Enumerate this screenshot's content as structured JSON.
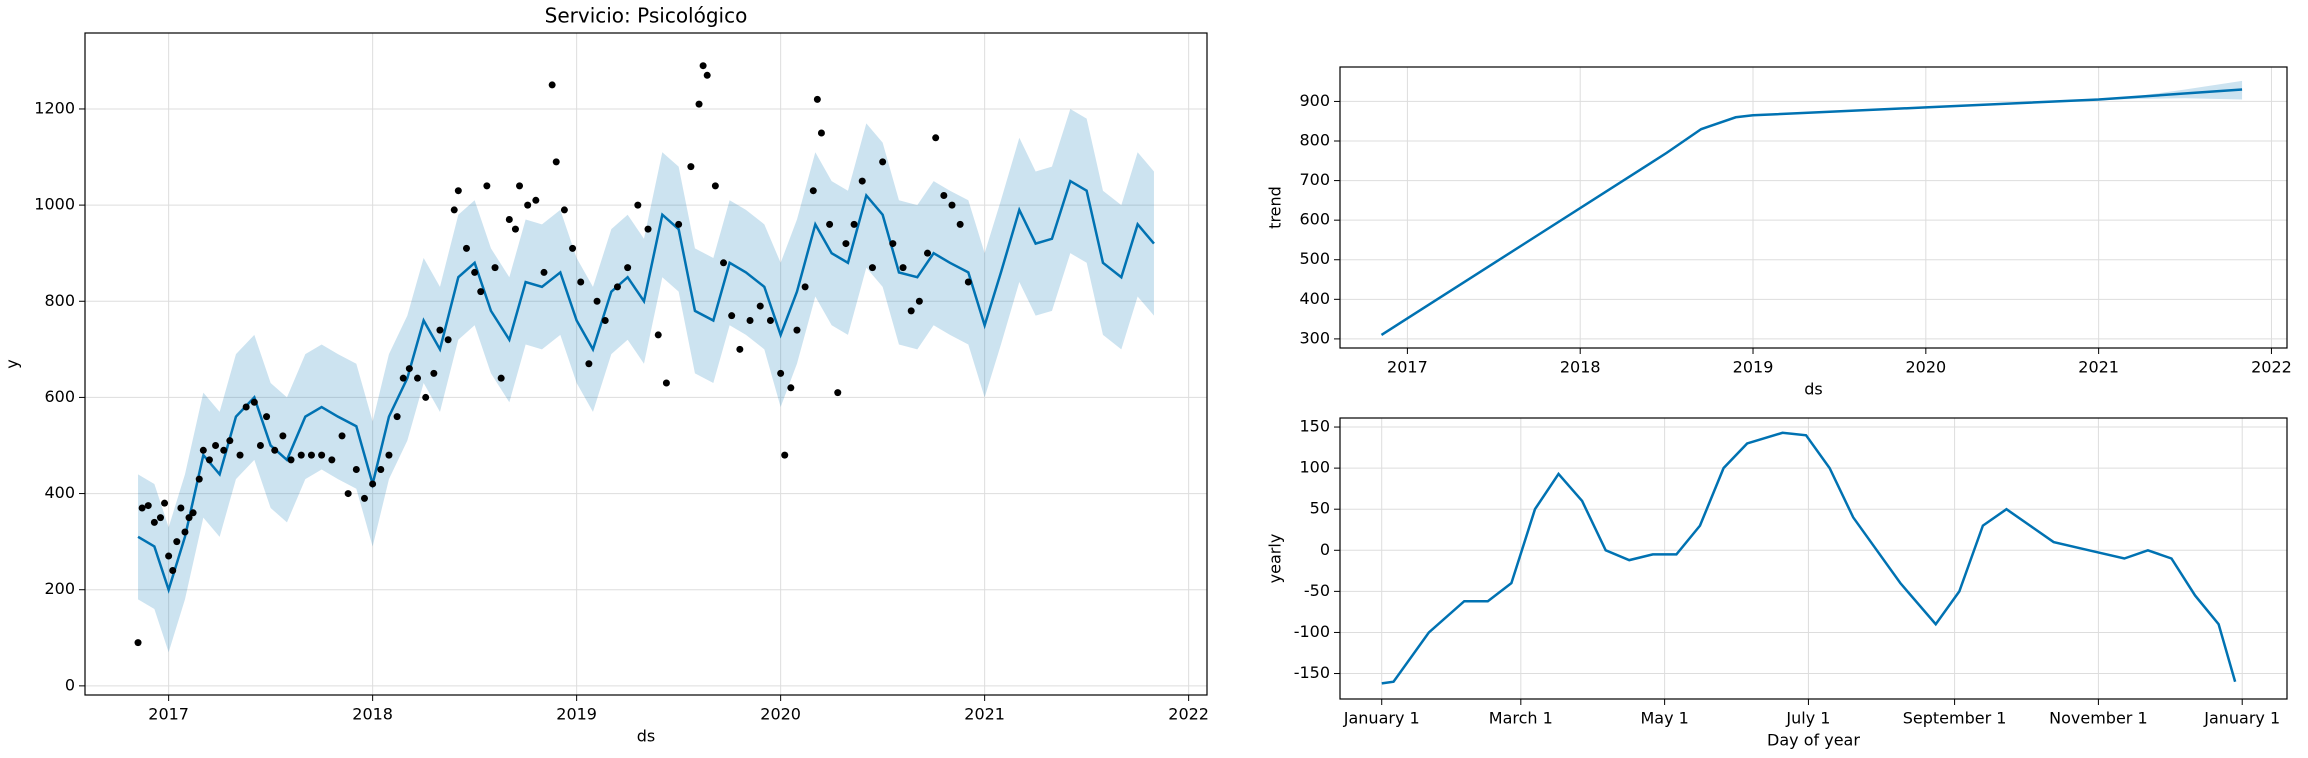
{
  "chart_data": [
    {
      "type": "line",
      "title": "Servicio: Psicológico",
      "xlabel": "ds",
      "ylabel": "y",
      "xlim": [
        2016.59,
        2022.09
      ],
      "ylim": [
        -19,
        1358
      ],
      "xticks": [
        2017,
        2018,
        2019,
        2020,
        2021,
        2022
      ],
      "yticks": [
        0,
        200,
        400,
        600,
        800,
        1000,
        1200
      ],
      "grid": true,
      "line_color": "#0072b2",
      "band_color": "#0072b2",
      "point_color": "#000000",
      "forecast": {
        "x": [
          2016.85,
          2016.93,
          2017.0,
          2017.08,
          2017.17,
          2017.25,
          2017.33,
          2017.42,
          2017.5,
          2017.58,
          2017.67,
          2017.75,
          2017.83,
          2017.92,
          2018.0,
          2018.08,
          2018.17,
          2018.25,
          2018.33,
          2018.42,
          2018.5,
          2018.58,
          2018.67,
          2018.75,
          2018.83,
          2018.92,
          2019.0,
          2019.08,
          2019.17,
          2019.25,
          2019.33,
          2019.42,
          2019.5,
          2019.58,
          2019.67,
          2019.75,
          2019.83,
          2019.92,
          2020.0,
          2020.08,
          2020.17,
          2020.25,
          2020.33,
          2020.42,
          2020.5,
          2020.58,
          2020.67,
          2020.75,
          2020.83,
          2020.92,
          2021.0,
          2021.08,
          2021.17,
          2021.25,
          2021.33,
          2021.42,
          2021.5,
          2021.58,
          2021.67,
          2021.75,
          2021.83
        ],
        "values": [
          310,
          290,
          200,
          310,
          480,
          440,
          560,
          600,
          500,
          470,
          560,
          580,
          560,
          540,
          420,
          560,
          640,
          760,
          700,
          850,
          880,
          780,
          720,
          840,
          830,
          860,
          760,
          700,
          820,
          850,
          800,
          980,
          950,
          780,
          760,
          880,
          860,
          830,
          730,
          820,
          960,
          900,
          880,
          1020,
          980,
          860,
          850,
          900,
          880,
          860,
          750,
          860,
          990,
          920,
          930,
          1050,
          1030,
          880,
          850,
          960,
          920
        ],
        "lower": [
          180,
          160,
          70,
          180,
          350,
          310,
          430,
          470,
          370,
          340,
          430,
          450,
          430,
          410,
          290,
          430,
          510,
          630,
          570,
          720,
          750,
          650,
          590,
          710,
          700,
          730,
          630,
          570,
          690,
          720,
          670,
          850,
          820,
          650,
          630,
          750,
          730,
          700,
          580,
          670,
          810,
          750,
          730,
          870,
          830,
          710,
          700,
          750,
          730,
          710,
          600,
          710,
          840,
          770,
          780,
          900,
          880,
          730,
          700,
          810,
          770
        ],
        "upper": [
          440,
          420,
          330,
          440,
          610,
          570,
          690,
          730,
          630,
          600,
          690,
          710,
          690,
          670,
          550,
          690,
          770,
          890,
          830,
          980,
          1010,
          910,
          850,
          970,
          960,
          990,
          890,
          830,
          950,
          980,
          930,
          1110,
          1080,
          910,
          890,
          1010,
          990,
          960,
          880,
          970,
          1110,
          1050,
          1030,
          1170,
          1130,
          1010,
          1000,
          1050,
          1030,
          1010,
          900,
          1010,
          1140,
          1070,
          1080,
          1200,
          1180,
          1030,
          1000,
          1110,
          1070
        ]
      },
      "observed": {
        "x": [
          2016.85,
          2016.87,
          2016.9,
          2016.93,
          2016.96,
          2016.98,
          2017.0,
          2017.02,
          2017.04,
          2017.06,
          2017.08,
          2017.1,
          2017.12,
          2017.15,
          2017.17,
          2017.2,
          2017.23,
          2017.27,
          2017.3,
          2017.35,
          2017.38,
          2017.42,
          2017.45,
          2017.48,
          2017.52,
          2017.56,
          2017.6,
          2017.65,
          2017.7,
          2017.75,
          2017.8,
          2017.85,
          2017.88,
          2017.92,
          2017.96,
          2018.0,
          2018.04,
          2018.08,
          2018.12,
          2018.15,
          2018.18,
          2018.22,
          2018.26,
          2018.3,
          2018.33,
          2018.37,
          2018.4,
          2018.42,
          2018.46,
          2018.5,
          2018.53,
          2018.56,
          2018.6,
          2018.63,
          2018.67,
          2018.7,
          2018.72,
          2018.76,
          2018.8,
          2018.84,
          2018.88,
          2018.9,
          2018.94,
          2018.98,
          2019.02,
          2019.06,
          2019.1,
          2019.14,
          2019.2,
          2019.25,
          2019.3,
          2019.35,
          2019.4,
          2019.44,
          2019.5,
          2019.56,
          2019.6,
          2019.62,
          2019.64,
          2019.68,
          2019.72,
          2019.76,
          2019.8,
          2019.85,
          2019.9,
          2019.95,
          2020.0,
          2020.02,
          2020.05,
          2020.08,
          2020.12,
          2020.16,
          2020.18,
          2020.2,
          2020.24,
          2020.28,
          2020.32,
          2020.36,
          2020.4,
          2020.45,
          2020.5,
          2020.55,
          2020.6,
          2020.64,
          2020.68,
          2020.72,
          2020.76,
          2020.8,
          2020.84,
          2020.88,
          2020.92
        ],
        "values": [
          90,
          370,
          375,
          340,
          350,
          380,
          270,
          240,
          300,
          370,
          320,
          350,
          360,
          430,
          490,
          470,
          500,
          490,
          510,
          480,
          580,
          590,
          500,
          560,
          490,
          520,
          470,
          480,
          480,
          480,
          470,
          520,
          400,
          450,
          390,
          420,
          450,
          480,
          560,
          640,
          660,
          640,
          600,
          650,
          740,
          720,
          990,
          1030,
          910,
          860,
          820,
          1040,
          870,
          640,
          970,
          950,
          1040,
          1000,
          1010,
          860,
          1250,
          1090,
          990,
          910,
          840,
          670,
          800,
          760,
          830,
          870,
          1000,
          950,
          730,
          630,
          960,
          1080,
          1210,
          1290,
          1270,
          1040,
          880,
          770,
          700,
          760,
          790,
          760,
          650,
          480,
          620,
          740,
          830,
          1030,
          1220,
          1150,
          960,
          610,
          920,
          960,
          1050,
          870,
          1090,
          920,
          870,
          780,
          800,
          900,
          1140,
          1020,
          1000,
          960,
          840
        ]
      }
    },
    {
      "type": "line",
      "xlabel": "ds",
      "ylabel": "trend",
      "xlim": [
        2016.61,
        2022.09
      ],
      "ylim": [
        277,
        987
      ],
      "xticks": [
        2017,
        2018,
        2019,
        2020,
        2021,
        2022
      ],
      "yticks": [
        300,
        400,
        500,
        600,
        700,
        800,
        900
      ],
      "grid": true,
      "line_color": "#0072b2",
      "band_color": "#0072b2",
      "trend": {
        "x": [
          2016.85,
          2018.5,
          2018.7,
          2018.9,
          2019.0,
          2020.0,
          2021.0,
          2021.83
        ],
        "values": [
          310,
          770,
          830,
          860,
          865,
          885,
          905,
          930
        ]
      },
      "band": {
        "x": [
          2020.85,
          2021.2,
          2021.5,
          2021.83
        ],
        "lower": [
          900,
          906,
          908,
          905
        ],
        "upper": [
          900,
          912,
          930,
          952
        ]
      }
    },
    {
      "type": "line",
      "xlabel": "Day of year",
      "ylabel": "yearly",
      "xlim": [
        -17.7,
        384
      ],
      "ylim": [
        -181,
        161
      ],
      "xticks": [
        {
          "value": 0,
          "label": "January 1"
        },
        {
          "value": 59,
          "label": "March 1"
        },
        {
          "value": 120,
          "label": "May 1"
        },
        {
          "value": 181,
          "label": "July 1"
        },
        {
          "value": 243,
          "label": "September 1"
        },
        {
          "value": 304,
          "label": "November 1"
        },
        {
          "value": 365,
          "label": "January 1"
        }
      ],
      "yticks": [
        -150,
        -100,
        -50,
        0,
        50,
        100,
        150
      ],
      "grid": true,
      "line_color": "#0072b2",
      "yearly": {
        "x": [
          0,
          5,
          20,
          35,
          45,
          55,
          65,
          75,
          85,
          95,
          105,
          115,
          125,
          135,
          145,
          155,
          170,
          180,
          190,
          200,
          220,
          235,
          245,
          255,
          265,
          275,
          285,
          300,
          315,
          325,
          335,
          345,
          355,
          362
        ],
        "values": [
          -162,
          -160,
          -100,
          -62,
          -62,
          -40,
          50,
          93,
          60,
          0,
          -12,
          -5,
          -5,
          30,
          100,
          130,
          143,
          140,
          100,
          40,
          -40,
          -90,
          -50,
          30,
          50,
          30,
          10,
          0,
          -10,
          0,
          -10,
          -55,
          -90,
          -160
        ]
      }
    }
  ]
}
